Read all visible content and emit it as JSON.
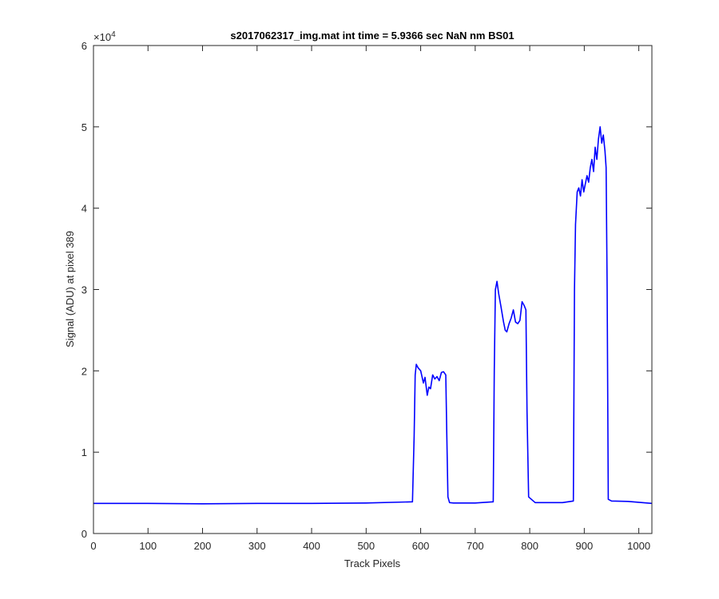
{
  "chart_data": {
    "type": "line",
    "title": "s2017062317_img.mat int time = 5.9366 sec  NaN nm BS01",
    "xlabel": "Track Pixels",
    "ylabel": "Signal (ADU) at pixel 389",
    "y_exponent_label": "×10",
    "y_exponent_power": "4",
    "xlim": [
      0,
      1024
    ],
    "ylim": [
      0,
      60000
    ],
    "x_ticks": [
      0,
      100,
      200,
      300,
      400,
      500,
      600,
      700,
      800,
      900,
      1000
    ],
    "x_tick_labels": [
      "0",
      "100",
      "200",
      "300",
      "400",
      "500",
      "600",
      "700",
      "800",
      "900",
      "1000"
    ],
    "y_ticks": [
      0,
      10000,
      20000,
      30000,
      40000,
      50000,
      60000
    ],
    "y_tick_labels": [
      "0",
      "1",
      "2",
      "3",
      "4",
      "5",
      "6"
    ],
    "grid": false,
    "line_color": "#0000ff",
    "series": [
      {
        "x": [
          0,
          100,
          200,
          300,
          400,
          500,
          585,
          588,
          590,
          592,
          595,
          600,
          605,
          608,
          612,
          615,
          618,
          622,
          626,
          630,
          634,
          638,
          642,
          646,
          648,
          650,
          653,
          660,
          700,
          733,
          735,
          737,
          740,
          743,
          747,
          752,
          755,
          758,
          762,
          766,
          770,
          774,
          778,
          782,
          786,
          790,
          793,
          795,
          798,
          810,
          860,
          880,
          882,
          884,
          887,
          890,
          893,
          896,
          899,
          902,
          905,
          908,
          911,
          914,
          917,
          920,
          923,
          926,
          929,
          932,
          935,
          938,
          940,
          942,
          944,
          950,
          980,
          1024
        ],
        "y": [
          3700,
          3700,
          3650,
          3700,
          3700,
          3750,
          3900,
          12000,
          19500,
          20800,
          20400,
          20000,
          18500,
          19200,
          17000,
          18000,
          17800,
          19500,
          19000,
          19300,
          18800,
          19800,
          19900,
          19500,
          12000,
          4500,
          3800,
          3750,
          3750,
          3900,
          20000,
          30000,
          31000,
          29500,
          28000,
          26000,
          25000,
          24800,
          25800,
          26500,
          27500,
          26000,
          25800,
          26200,
          28500,
          28000,
          27500,
          15000,
          4500,
          3800,
          3800,
          4000,
          30000,
          38000,
          42000,
          42500,
          41500,
          43500,
          42000,
          43000,
          44000,
          43200,
          45000,
          46000,
          44500,
          47500,
          46000,
          48500,
          50000,
          48000,
          49000,
          47000,
          45000,
          30000,
          4200,
          4000,
          3950,
          3700
        ]
      }
    ]
  }
}
